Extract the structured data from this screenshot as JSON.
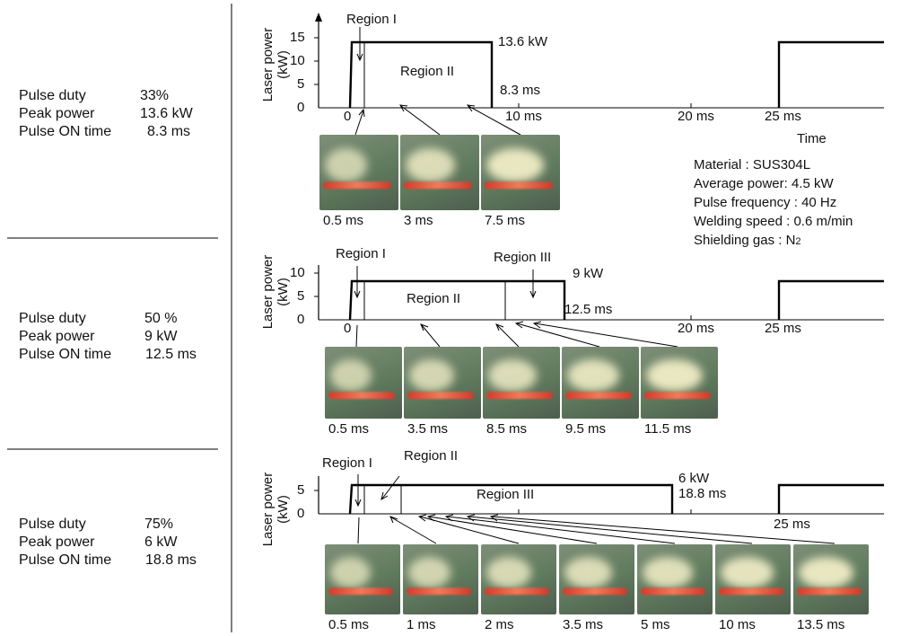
{
  "panels": [
    {
      "params": {
        "duty_label": "Pulse duty",
        "duty_value": "33%",
        "peak_label": "Peak power",
        "peak_value": "13.6 kW",
        "on_label": "Pulse ON time",
        "on_value": "8.3 ms"
      },
      "y_axis": {
        "label_line1": "Laser power",
        "label_line2": "(kW)",
        "ticks": [
          "15",
          "10",
          "5",
          "0"
        ]
      },
      "x_ticks": [
        "0",
        "10 ms",
        "20 ms",
        "25 ms"
      ],
      "x_axis_title": "Time",
      "regions": [
        "Region I",
        "Region II"
      ],
      "peak_label": "13.6 kW",
      "on_time_label": "8.3 ms",
      "photos": [
        "0.5 ms",
        "3 ms",
        "7.5 ms"
      ]
    },
    {
      "params": {
        "duty_label": "Pulse duty",
        "duty_value": "50 %",
        "peak_label": "Peak power",
        "peak_value": "9 kW",
        "on_label": "Pulse ON time",
        "on_value": "12.5 ms"
      },
      "y_axis": {
        "label_line1": "Laser power",
        "label_line2": "(kW)",
        "ticks": [
          "10",
          "5",
          "0"
        ]
      },
      "x_ticks": [
        "0",
        "20 ms",
        "25 ms"
      ],
      "regions": [
        "Region I",
        "Region II",
        "Region III"
      ],
      "peak_label": "9 kW",
      "on_time_label": "12.5 ms",
      "photos": [
        "0.5 ms",
        "3.5 ms",
        "8.5 ms",
        "9.5 ms",
        "11.5 ms"
      ]
    },
    {
      "params": {
        "duty_label": "Pulse duty",
        "duty_value": "75%",
        "peak_label": "Peak power",
        "peak_value": "6 kW",
        "on_label": "Pulse ON time",
        "on_value": "18.8 ms"
      },
      "y_axis": {
        "label_line1": "Laser power",
        "label_line2": "(kW)",
        "ticks": [
          "5",
          "0"
        ]
      },
      "x_ticks": [
        "25 ms"
      ],
      "regions": [
        "Region I",
        "Region II",
        "Region III"
      ],
      "peak_label": "6 kW",
      "on_time_label": "18.8 ms",
      "photos": [
        "0.5 ms",
        "1 ms",
        "2 ms",
        "3.5 ms",
        "5 ms",
        "10 ms",
        "13.5 ms"
      ]
    }
  ],
  "conditions": {
    "material": "Material : SUS304L",
    "average_power": "Average power: 4.5 kW",
    "pulse_frequency": "Pulse frequency : 40 Hz",
    "welding_speed": "Welding speed : 0.6 m/min",
    "shielding_gas_prefix": "Shielding gas : N",
    "shielding_gas_sub": "2"
  },
  "colors": {
    "line": "#000000",
    "photo_bg": "#5f7a5d",
    "plume": "#f3efc8",
    "bead": "#d94a35"
  }
}
